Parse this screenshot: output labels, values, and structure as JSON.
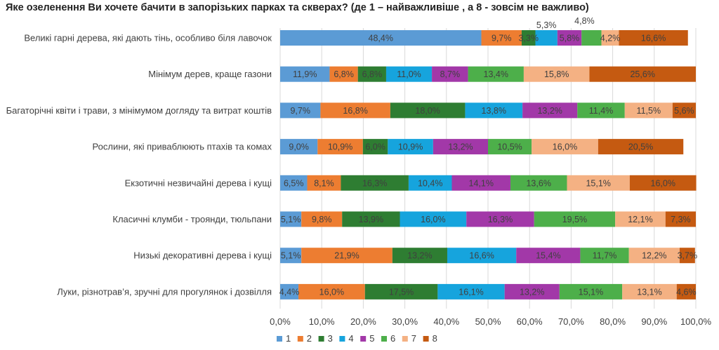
{
  "chart_data": {
    "type": "bar",
    "orientation": "horizontal",
    "stacked": "percent",
    "title": "Яке озеленення Ви хочете бачити в запорізьких парках та скверах? (де 1 – найважливіше , а 8 - зовсім не важливо)",
    "categories": [
      "Великі гарні дерева, які дають тінь, особливо біля лавочок",
      "Мінімум дерев, краще газони",
      "Багаторічні квіти і трави, з мінімумом догляду та витрат коштів",
      "Рослини, які приваблюють птахів та комах",
      "Екзотичні незвичайні дерева і кущі",
      "Класичні клумби - троянди, тюльпани",
      "Низькі декоративні дерева і кущі",
      "Луки, різнотрав’я, зручні для прогулянок і дозвілля"
    ],
    "series": [
      {
        "name": "1",
        "color": "#5B9BD5",
        "values": [
          48.4,
          11.9,
          9.7,
          9.0,
          6.5,
          5.1,
          5.1,
          4.4
        ],
        "labels": [
          "48,4%",
          "11,9%",
          "9,7%",
          "9,0%",
          "6,5%",
          "5,1%",
          "5,1%",
          "4,4%"
        ]
      },
      {
        "name": "2",
        "color": "#ED7D31",
        "values": [
          9.7,
          6.8,
          16.8,
          10.9,
          8.1,
          9.8,
          21.9,
          16.0
        ],
        "labels": [
          "9,7%",
          "6,8%",
          "16,8%",
          "10,9%",
          "8,1%",
          "9,8%",
          "21,9%",
          "16,0%"
        ]
      },
      {
        "name": "3",
        "color": "#2E7D32",
        "values": [
          3.3,
          6.8,
          18.0,
          6.0,
          16.3,
          13.9,
          13.2,
          17.5
        ],
        "labels": [
          "3,3%",
          "6,8%",
          "18,0%",
          "6,0%",
          "16,3%",
          "13,9%",
          "13,2%",
          "17,5%"
        ]
      },
      {
        "name": "4",
        "color": "#16A4DD",
        "values": [
          5.3,
          11.0,
          13.8,
          10.9,
          10.4,
          16.0,
          16.6,
          16.1
        ],
        "labels": [
          "5,3%",
          "11,0%",
          "13,8%",
          "10,9%",
          "10,4%",
          "16,0%",
          "16,6%",
          "16,1%"
        ]
      },
      {
        "name": "5",
        "color": "#A238A8",
        "values": [
          5.8,
          8.7,
          13.2,
          13.2,
          14.1,
          16.3,
          15.4,
          13.2
        ],
        "labels": [
          "5,8%",
          "8,7%",
          "13,2%",
          "13,2%",
          "14,1%",
          "16,3%",
          "15,4%",
          "13,2%"
        ]
      },
      {
        "name": "6",
        "color": "#4DAF4A",
        "values": [
          4.8,
          13.4,
          11.4,
          10.5,
          13.6,
          19.5,
          11.7,
          15.1
        ],
        "labels": [
          "4,8%",
          "13,4%",
          "11,4%",
          "10,5%",
          "13,6%",
          "19,5%",
          "11,7%",
          "15,1%"
        ]
      },
      {
        "name": "7",
        "color": "#F4B183",
        "values": [
          4.2,
          15.8,
          11.5,
          16.0,
          15.1,
          12.1,
          12.2,
          13.1
        ],
        "labels": [
          "4,2%",
          "15,8%",
          "11,5%",
          "16,0%",
          "15,1%",
          "12,1%",
          "12,2%",
          "13,1%"
        ]
      },
      {
        "name": "8",
        "color": "#C55A11",
        "values": [
          16.6,
          25.6,
          5.6,
          20.5,
          16.0,
          7.3,
          3.7,
          4.6
        ],
        "labels": [
          "16,6%",
          "25,6%",
          "5,6%",
          "20,5%",
          "16,0%",
          "7,3%",
          "3,7%",
          "4,6%"
        ]
      }
    ],
    "xlim": [
      0,
      100
    ],
    "xticks": [
      "0,0%",
      "10,0%",
      "20,0%",
      "30,0%",
      "40,0%",
      "50,0%",
      "60,0%",
      "70,0%",
      "80,0%",
      "90,0%",
      "100,0%"
    ],
    "legend": [
      "1",
      "2",
      "3",
      "4",
      "5",
      "6",
      "7",
      "8"
    ],
    "legend_position": "bottom",
    "grid": true
  }
}
